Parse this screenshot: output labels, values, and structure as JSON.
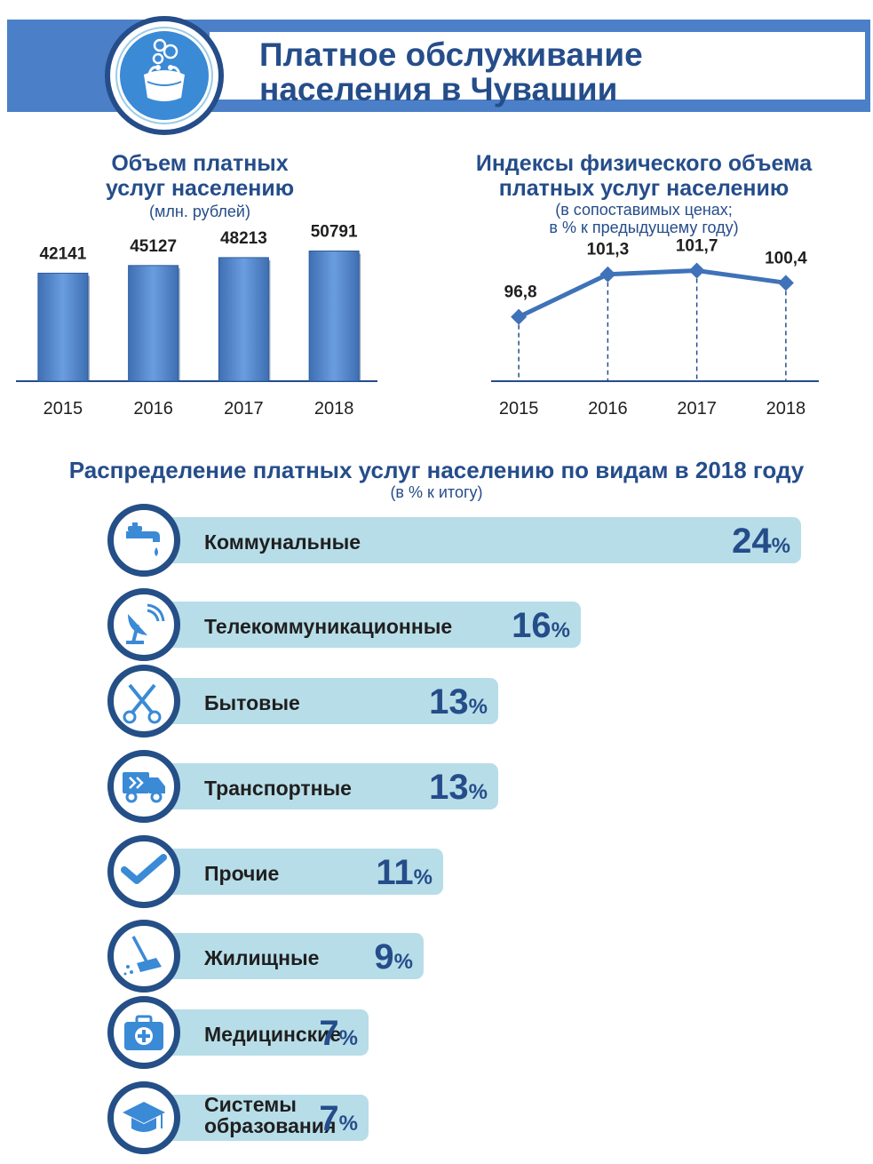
{
  "header": {
    "title_line1": "Платное обслуживание",
    "title_line2": "населения в Чувашии",
    "logo_icon": "purse-coins-icon"
  },
  "colors": {
    "primary": "#254d8a",
    "band": "#4b80c8",
    "bar": "#5b8fd4",
    "row_bar": "#b7dde8",
    "icon": "#3a8ad6"
  },
  "volume_chart": {
    "title_line1": "Объем платных",
    "title_line2": "услуг населению",
    "subtitle": "(млн. рублей)"
  },
  "index_chart": {
    "title_line1": "Индексы физического объема",
    "title_line2": "платных услуг населению",
    "subtitle_line1": "(в сопоставимых ценах;",
    "subtitle_line2": "в % к предыдущему году)"
  },
  "distribution": {
    "title": "Распределение платных услуг населению по видам в 2018 году",
    "subtitle": "(в % к итогу)",
    "unit": "%",
    "items": [
      {
        "label": "Коммунальные",
        "value": "24",
        "icon": "water-tap-icon"
      },
      {
        "label": "Телекоммуникационные",
        "value": "16",
        "icon": "satellite-dish-icon"
      },
      {
        "label": "Бытовые",
        "value": "13",
        "icon": "scissors-comb-icon"
      },
      {
        "label": "Транспортные",
        "value": "13",
        "icon": "delivery-truck-icon"
      },
      {
        "label": "Прочие",
        "value": "11",
        "icon": "checkmark-icon"
      },
      {
        "label": "Жилищные",
        "value": "9",
        "icon": "mop-icon"
      },
      {
        "label": "Медицинские",
        "value": "7",
        "icon": "medical-kit-icon"
      },
      {
        "label_line1": "Системы",
        "label_line2": "образования",
        "value": "7",
        "icon": "graduation-cap-icon"
      }
    ]
  },
  "chart_data": [
    {
      "type": "bar",
      "title": "Объем платных услуг населению",
      "subtitle": "(млн. рублей)",
      "categories": [
        "2015",
        "2016",
        "2017",
        "2018"
      ],
      "values": [
        42141,
        45127,
        48213,
        50791
      ],
      "value_labels": [
        "42141",
        "45127",
        "48213",
        "50791"
      ],
      "ylim": [
        0,
        52000
      ],
      "grid": false,
      "legend": "none"
    },
    {
      "type": "line",
      "title": "Индексы физического объема платных услуг населению",
      "subtitle": "(в сопоставимых ценах; в % к предыдущему году)",
      "categories": [
        "2015",
        "2016",
        "2017",
        "2018"
      ],
      "values": [
        96.8,
        101.3,
        101.7,
        100.4
      ],
      "value_labels": [
        "96,8",
        "101,3",
        "101,7",
        "100,4"
      ],
      "ylim": [
        90,
        104
      ],
      "grid": false,
      "legend": "none"
    },
    {
      "type": "bar",
      "title": "Распределение платных услуг населению по видам в 2018 году",
      "subtitle": "(в % к итогу)",
      "categories": [
        "Коммунальные",
        "Телекоммуникационные",
        "Бытовые",
        "Транспортные",
        "Прочие",
        "Жилищные",
        "Медицинские",
        "Системы образования"
      ],
      "values": [
        24,
        16,
        13,
        13,
        11,
        9,
        7,
        7
      ],
      "orientation": "horizontal",
      "grid": false,
      "legend": "none"
    }
  ]
}
